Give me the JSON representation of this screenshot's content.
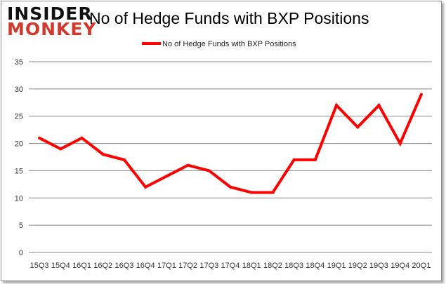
{
  "logo": {
    "line1": "INSIDER",
    "line2": "MONKEY"
  },
  "chart_data": {
    "type": "line",
    "title": "No of Hedge Funds with BXP Positions",
    "xlabel": "",
    "ylabel": "",
    "categories": [
      "15Q3",
      "15Q4",
      "16Q1",
      "16Q2",
      "16Q3",
      "16Q4",
      "17Q1",
      "17Q2",
      "17Q3",
      "17Q4",
      "18Q1",
      "18Q2",
      "18Q3",
      "18Q4",
      "19Q1",
      "19Q2",
      "19Q3",
      "19Q4",
      "20Q1"
    ],
    "series": [
      {
        "name": "No of Hedge Funds with BXP Positions",
        "color": "#ff0000",
        "values": [
          21,
          19,
          21,
          18,
          17,
          12,
          14,
          16,
          15,
          12,
          11,
          11,
          17,
          17,
          27,
          23,
          27,
          20,
          29
        ]
      }
    ],
    "ylim": [
      0,
      35
    ],
    "yticks": [
      0,
      5,
      10,
      15,
      20,
      25,
      30,
      35
    ],
    "grid": true,
    "legend_position": "top"
  }
}
